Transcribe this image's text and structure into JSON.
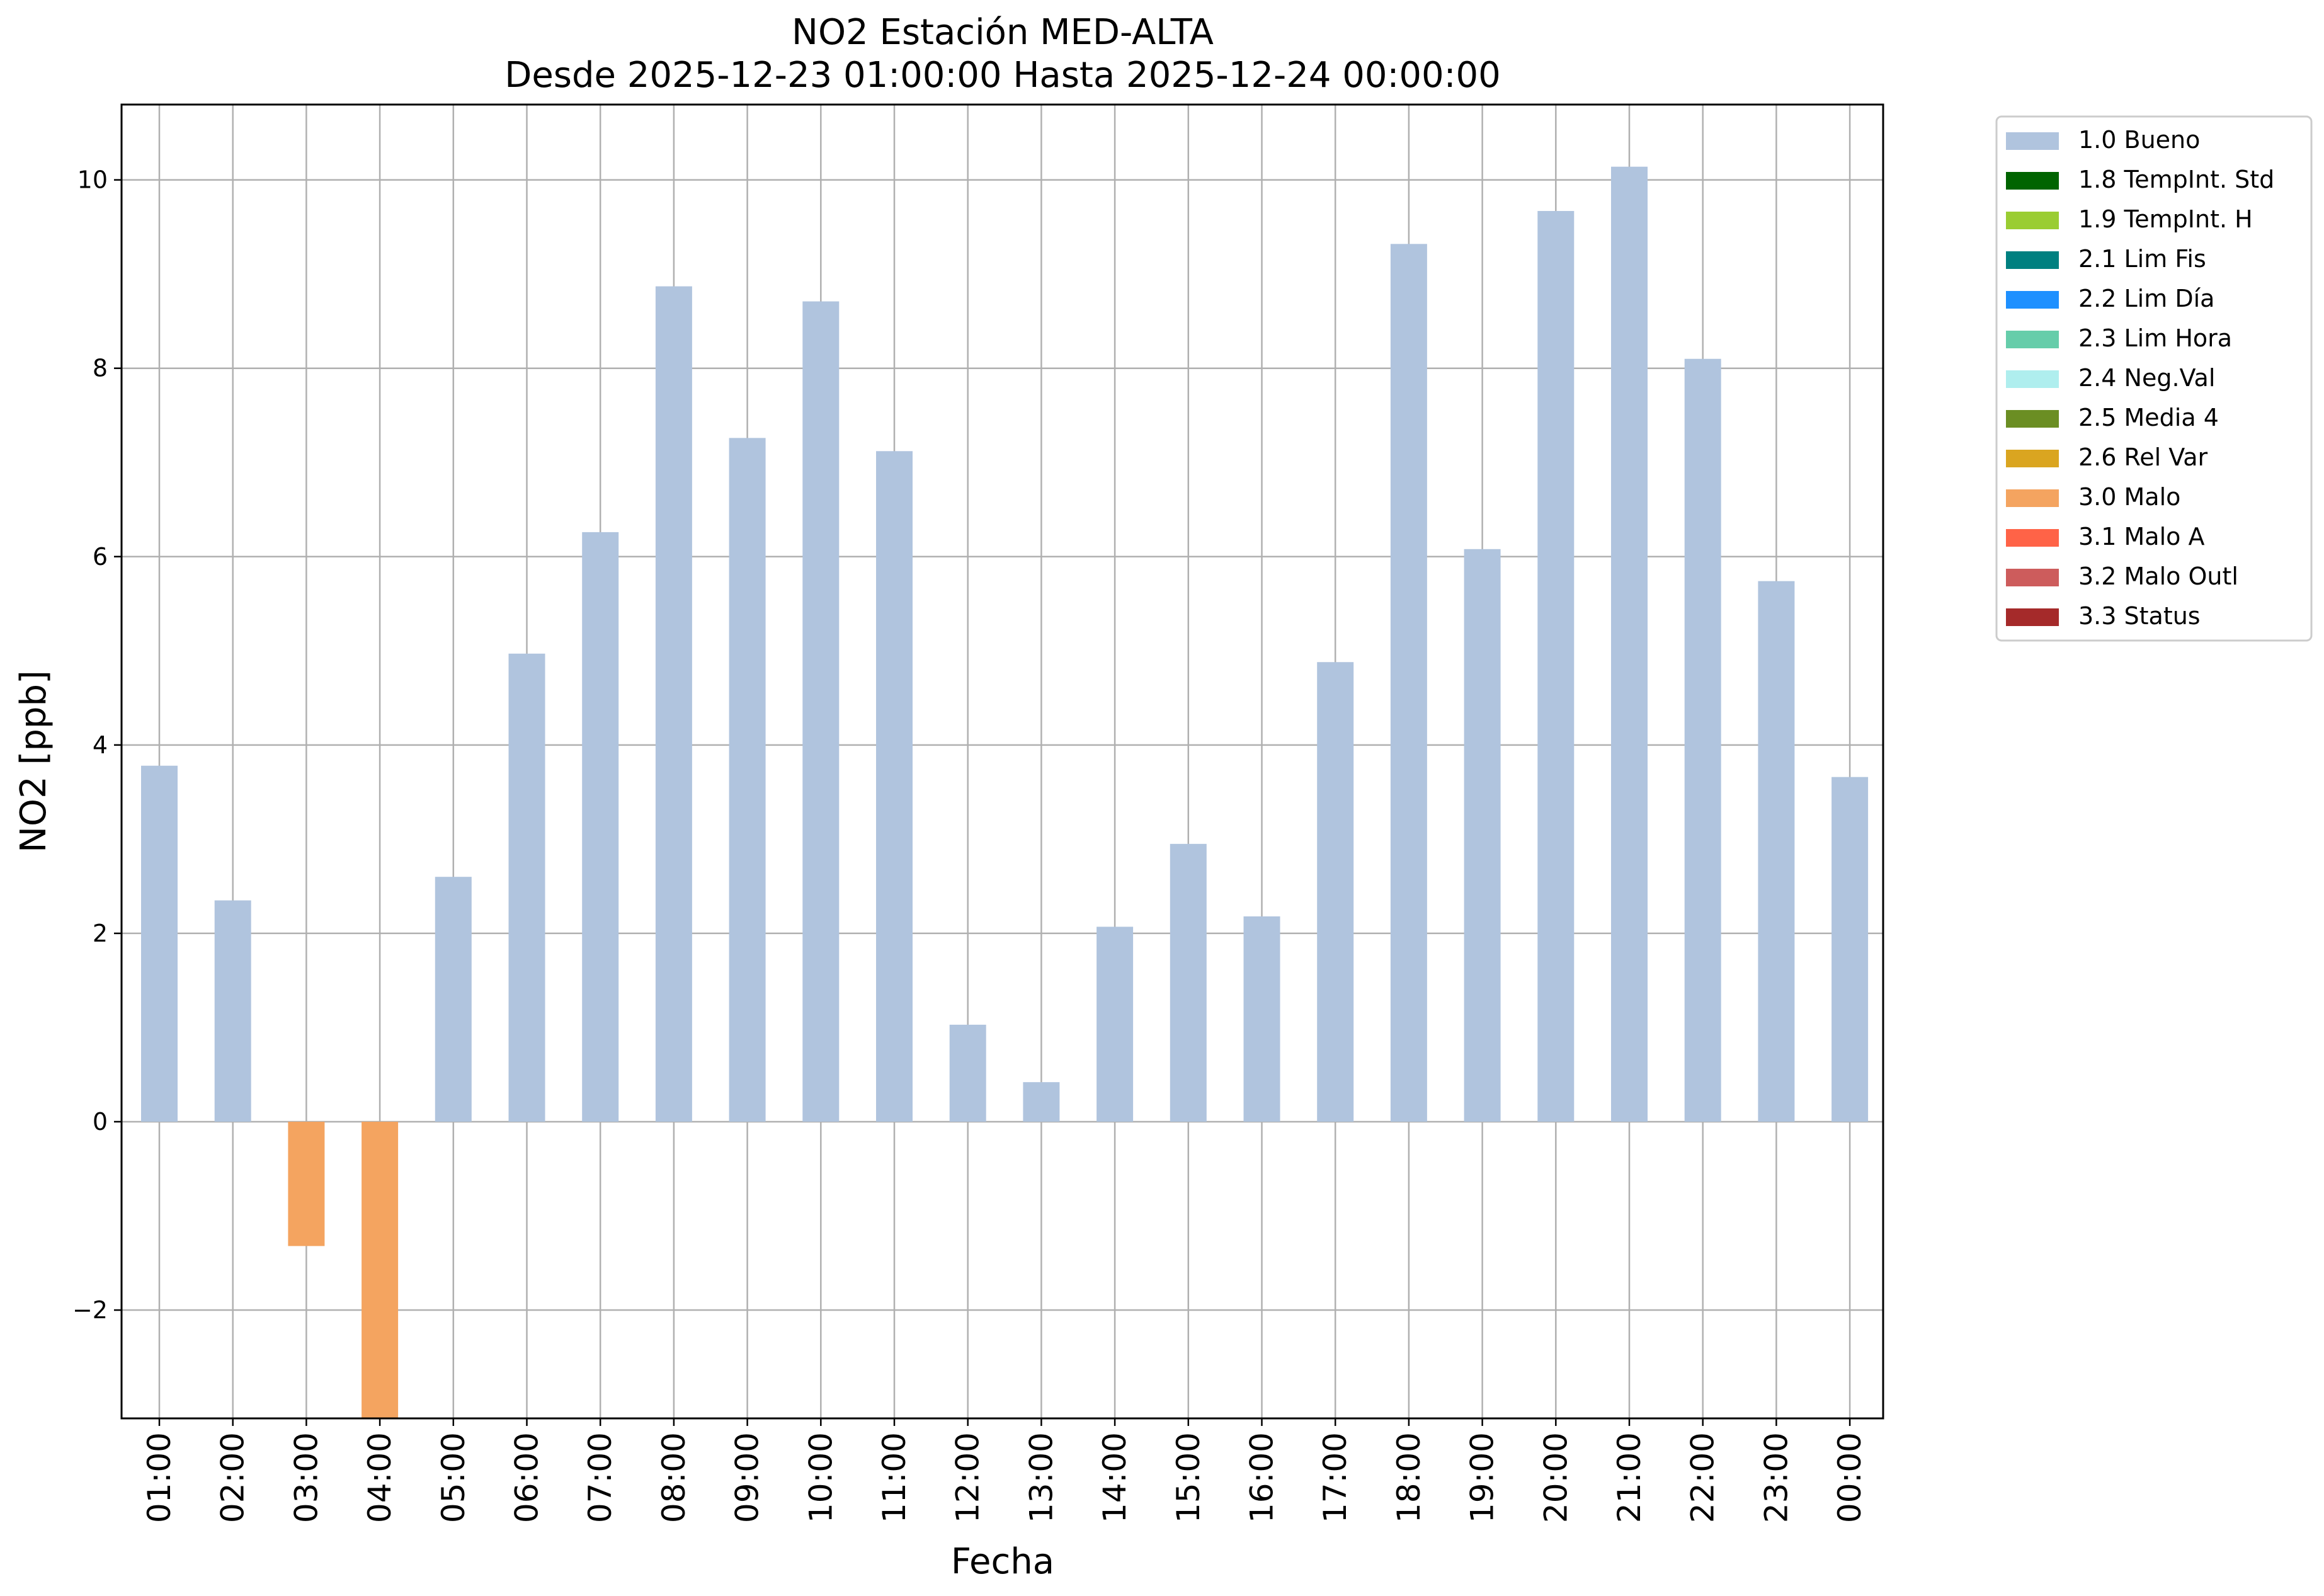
{
  "chart_data": {
    "type": "bar",
    "title": "NO2 Estación MED-ALTA",
    "subtitle": "Desde 2025-12-23 01:00:00 Hasta 2025-12-24 00:00:00",
    "xlabel": "Fecha",
    "ylabel": "NO2 [ppb]",
    "ylim": [
      -3.15,
      10.8
    ],
    "yticks": [
      -2,
      0,
      2,
      4,
      6,
      8,
      10
    ],
    "ytick_labels": [
      "−2",
      "0",
      "2",
      "4",
      "6",
      "8",
      "10"
    ],
    "grid": true,
    "legend_position": "outside-top-right",
    "categories": [
      "01:00",
      "02:00",
      "03:00",
      "04:00",
      "05:00",
      "06:00",
      "07:00",
      "08:00",
      "09:00",
      "10:00",
      "11:00",
      "12:00",
      "13:00",
      "14:00",
      "15:00",
      "16:00",
      "17:00",
      "18:00",
      "19:00",
      "20:00",
      "21:00",
      "22:00",
      "23:00",
      "00:00"
    ],
    "values": [
      3.78,
      2.35,
      -1.32,
      -3.2,
      2.6,
      4.97,
      6.26,
      8.87,
      7.26,
      8.71,
      7.12,
      1.03,
      0.42,
      2.07,
      2.95,
      2.18,
      4.88,
      9.32,
      6.08,
      9.67,
      10.14,
      8.1,
      5.74,
      3.66
    ],
    "bar_flags": [
      "1.0 Bueno",
      "1.0 Bueno",
      "3.0 Malo",
      "3.0 Malo",
      "1.0 Bueno",
      "1.0 Bueno",
      "1.0 Bueno",
      "1.0 Bueno",
      "1.0 Bueno",
      "1.0 Bueno",
      "1.0 Bueno",
      "1.0 Bueno",
      "1.0 Bueno",
      "1.0 Bueno",
      "1.0 Bueno",
      "1.0 Bueno",
      "1.0 Bueno",
      "1.0 Bueno",
      "1.0 Bueno",
      "1.0 Bueno",
      "1.0 Bueno",
      "1.0 Bueno",
      "1.0 Bueno",
      "1.0 Bueno"
    ],
    "legend": [
      {
        "label": "1.0 Bueno",
        "color": "#b0c4de"
      },
      {
        "label": "1.8 TempInt. Std",
        "color": "#006400"
      },
      {
        "label": "1.9 TempInt. H",
        "color": "#9acd32"
      },
      {
        "label": "2.1 Lim Fis",
        "color": "#008080"
      },
      {
        "label": "2.2 Lim Día",
        "color": "#1e90ff"
      },
      {
        "label": "2.3 Lim Hora",
        "color": "#66cdaa"
      },
      {
        "label": "2.4 Neg.Val",
        "color": "#afeeee"
      },
      {
        "label": "2.5 Media 4",
        "color": "#6b8e23"
      },
      {
        "label": "2.6 Rel Var",
        "color": "#daa520"
      },
      {
        "label": "3.0 Malo",
        "color": "#f4a460"
      },
      {
        "label": "3.1 Malo A",
        "color": "#ff6347"
      },
      {
        "label": "3.2 Malo Outl",
        "color": "#cd5c5c"
      },
      {
        "label": "3.3 Status",
        "color": "#a52a2a"
      }
    ]
  }
}
